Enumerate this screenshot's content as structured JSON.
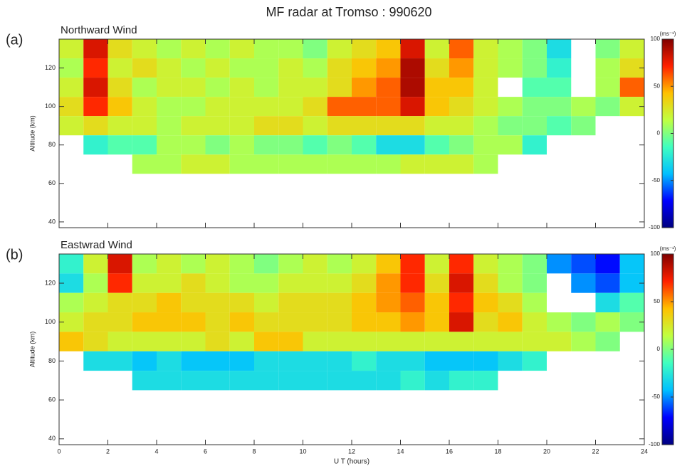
{
  "title": "MF radar at Tromso : 990620",
  "chart_data": [
    {
      "type": "heatmap",
      "panel": "(a)",
      "title": "Northward Wind",
      "ylabel": "Altitude (km)",
      "x": [
        0.5,
        1.5,
        2.5,
        3.5,
        4.5,
        5.5,
        6.5,
        7.5,
        8.5,
        9.5,
        10.5,
        11.5,
        12.5,
        13.5,
        14.5,
        15.5,
        16.5,
        17.5,
        18.5,
        19.5,
        20.5,
        21.5,
        22.5,
        23.5
      ],
      "y": [
        130,
        120,
        110,
        100,
        90,
        80,
        70
      ],
      "values": [
        [
          20,
          80,
          30,
          20,
          10,
          20,
          10,
          20,
          10,
          10,
          0,
          20,
          30,
          40,
          80,
          20,
          60,
          20,
          10,
          0,
          -30,
          null,
          0,
          20
        ],
        [
          10,
          70,
          20,
          30,
          20,
          10,
          20,
          10,
          10,
          20,
          10,
          30,
          40,
          50,
          90,
          30,
          50,
          20,
          10,
          0,
          -20,
          null,
          10,
          30
        ],
        [
          20,
          80,
          30,
          10,
          20,
          20,
          10,
          20,
          10,
          20,
          20,
          30,
          50,
          60,
          90,
          40,
          40,
          20,
          null,
          -10,
          -10,
          null,
          10,
          60
        ],
        [
          30,
          70,
          40,
          20,
          10,
          10,
          20,
          20,
          20,
          20,
          30,
          60,
          60,
          60,
          80,
          40,
          30,
          20,
          10,
          0,
          0,
          10,
          0,
          20
        ],
        [
          20,
          30,
          20,
          20,
          10,
          20,
          20,
          20,
          30,
          30,
          20,
          30,
          30,
          30,
          30,
          20,
          20,
          10,
          0,
          0,
          -10,
          0,
          null,
          null
        ],
        [
          null,
          -20,
          -10,
          -10,
          10,
          10,
          0,
          10,
          0,
          0,
          -10,
          0,
          -10,
          -30,
          -30,
          -10,
          0,
          10,
          10,
          -20,
          null,
          null,
          null,
          null
        ],
        [
          null,
          null,
          null,
          10,
          10,
          20,
          20,
          10,
          10,
          10,
          10,
          10,
          10,
          10,
          20,
          20,
          20,
          10,
          null,
          null,
          null,
          null,
          null,
          null
        ]
      ],
      "xlim": [
        0,
        24
      ],
      "xticks": [
        0,
        2,
        4,
        6,
        8,
        10,
        12,
        14,
        16,
        18,
        20,
        22,
        24
      ],
      "ylim": [
        37,
        135
      ],
      "yticks": [
        40,
        60,
        80,
        100,
        120
      ],
      "colorbar": {
        "label": "(ms⁻¹)",
        "lim": [
          -100,
          100
        ],
        "ticks": [
          -100,
          -50,
          0,
          50,
          100
        ]
      },
      "colormap": [
        "#000080",
        "#0000ff",
        "#00c0ff",
        "#40ffc0",
        "#c0ff40",
        "#ffc000",
        "#ff2000",
        "#800000"
      ]
    },
    {
      "type": "heatmap",
      "panel": "(b)",
      "title": "Eastwrad Wind",
      "ylabel": "Altitude (km)",
      "xlabel": "U T (hours)",
      "x": [
        0.5,
        1.5,
        2.5,
        3.5,
        4.5,
        5.5,
        6.5,
        7.5,
        8.5,
        9.5,
        10.5,
        11.5,
        12.5,
        13.5,
        14.5,
        15.5,
        16.5,
        17.5,
        18.5,
        19.5,
        20.5,
        21.5,
        22.5,
        23.5
      ],
      "y": [
        130,
        120,
        110,
        100,
        90,
        80,
        70
      ],
      "values": [
        [
          -20,
          20,
          80,
          10,
          20,
          10,
          20,
          10,
          0,
          10,
          20,
          10,
          20,
          40,
          70,
          20,
          70,
          20,
          10,
          0,
          -50,
          -60,
          -70,
          -40
        ],
        [
          -30,
          10,
          70,
          20,
          20,
          30,
          20,
          10,
          10,
          20,
          20,
          20,
          30,
          50,
          70,
          30,
          80,
          30,
          10,
          0,
          null,
          -50,
          -60,
          -40
        ],
        [
          10,
          20,
          30,
          30,
          40,
          30,
          30,
          30,
          20,
          30,
          30,
          30,
          40,
          50,
          60,
          40,
          70,
          40,
          30,
          10,
          null,
          null,
          -30,
          -10
        ],
        [
          20,
          30,
          30,
          40,
          40,
          40,
          30,
          40,
          30,
          30,
          30,
          30,
          40,
          40,
          50,
          40,
          80,
          30,
          40,
          20,
          10,
          0,
          10,
          0
        ],
        [
          40,
          30,
          20,
          20,
          20,
          20,
          30,
          20,
          40,
          40,
          20,
          20,
          20,
          20,
          20,
          20,
          20,
          20,
          20,
          20,
          20,
          10,
          0,
          null
        ],
        [
          null,
          -30,
          -30,
          -40,
          -30,
          -40,
          -40,
          -40,
          -30,
          -30,
          -30,
          -30,
          -20,
          -30,
          -30,
          -40,
          -40,
          -40,
          -30,
          -20,
          null,
          null,
          null,
          null
        ],
        [
          null,
          null,
          null,
          -30,
          -30,
          -30,
          -30,
          -30,
          -30,
          -30,
          -30,
          -30,
          -30,
          -30,
          -20,
          -30,
          -20,
          -20,
          null,
          null,
          null,
          null,
          null,
          null
        ]
      ],
      "xlim": [
        0,
        24
      ],
      "xticks": [
        0,
        2,
        4,
        6,
        8,
        10,
        12,
        14,
        16,
        18,
        20,
        22,
        24
      ],
      "ylim": [
        37,
        135
      ],
      "yticks": [
        40,
        60,
        80,
        100,
        120
      ],
      "colorbar": {
        "label": "(ms⁻¹)",
        "lim": [
          -100,
          100
        ],
        "ticks": [
          -100,
          -50,
          0,
          50,
          100
        ]
      },
      "colormap": [
        "#000080",
        "#0000ff",
        "#00c0ff",
        "#40ffc0",
        "#c0ff40",
        "#ffc000",
        "#ff2000",
        "#800000"
      ]
    }
  ]
}
